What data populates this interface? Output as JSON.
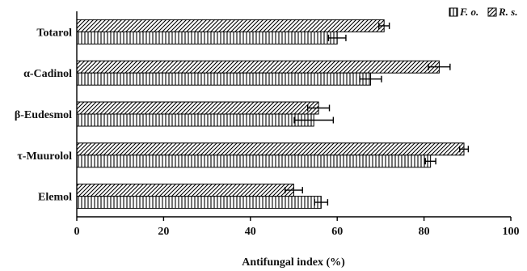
{
  "chart_data": {
    "type": "bar",
    "orientation": "horizontal",
    "categories": [
      "Totarol",
      "α-Cadinol",
      "β-Eudesmol",
      "τ-Muurolol",
      "Elemol"
    ],
    "series": [
      {
        "name": "R. s.",
        "pattern": "diagonal-hatch",
        "values": [
          70.8,
          83.5,
          55.7,
          89.2,
          50.0
        ],
        "errors": [
          1.2,
          2.5,
          2.5,
          1.0,
          2.0
        ]
      },
      {
        "name": "F. o.",
        "pattern": "vertical-stripes",
        "values": [
          60.0,
          67.7,
          54.6,
          81.5,
          56.3
        ],
        "errors": [
          2.0,
          2.5,
          4.5,
          1.2,
          1.5
        ]
      }
    ],
    "legend_order": [
      "F. o.",
      "R. s."
    ],
    "legend_position": "top-right",
    "xlabel": "Antifungal index (%)",
    "ylabel": "",
    "xlim": [
      0,
      100
    ],
    "xticks": [
      "0",
      "20",
      "40",
      "60",
      "80",
      "100"
    ],
    "grid": false
  }
}
